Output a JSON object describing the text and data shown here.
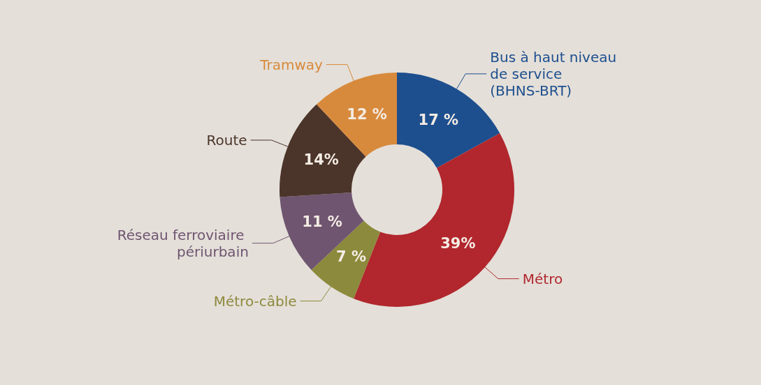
{
  "chart_data": {
    "type": "donut",
    "categories": [
      "Bus à haut niveau de service (BHNS-BRT)",
      "Métro",
      "Métro-câble",
      "Réseau ferroviaire périurbain",
      "Route",
      "Tramway"
    ],
    "values": [
      17,
      39,
      7,
      11,
      14,
      12
    ],
    "value_labels": [
      "17 %",
      "39%",
      "7 %",
      "11 %",
      "14%",
      "12 %"
    ],
    "colors": [
      "#1d4f8e",
      "#b1272d",
      "#8c8a3c",
      "#6f5570",
      "#4b3429",
      "#d88a3c"
    ],
    "legend": false
  }
}
